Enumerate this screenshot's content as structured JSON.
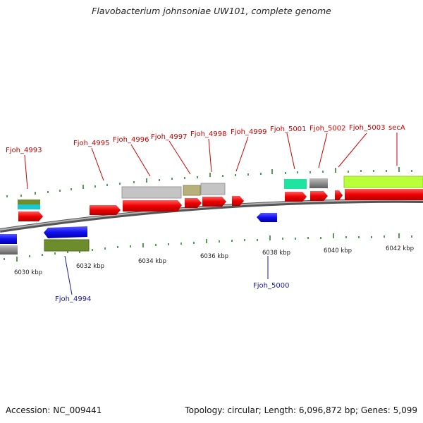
{
  "header": {
    "title": "Flavobacterium johnsoniae UW101, complete genome"
  },
  "footer": {
    "accession": "Accession: NC_009441",
    "topology": "Topology: circular; Length: 6,096,872 bp; Genes: 5,099"
  },
  "scale_labels": [
    "6030 kbp",
    "6032 kbp",
    "6034 kbp",
    "6036 kbp",
    "6038 kbp",
    "6040 kbp",
    "6042 kbp"
  ],
  "gene_labels": {
    "fjoh_4993": "Fjoh_4993",
    "fjoh_4994": "Fjoh_4994",
    "fjoh_4995": "Fjoh_4995",
    "fjoh_4996": "Fjoh_4996",
    "fjoh_4997": "Fjoh_4997",
    "fjoh_4998": "Fjoh_4998",
    "fjoh_4999": "Fjoh_4999",
    "fjoh_5000": "Fjoh_5000",
    "fjoh_5001": "Fjoh_5001",
    "fjoh_5002": "Fjoh_5002",
    "fjoh_5003": "Fjoh_5003",
    "secA": "secA"
  },
  "colors": {
    "forward_gene": "#ff0000",
    "reverse_gene": "#0000ee",
    "label_forward": "#cc0000",
    "label_reverse": "#1a1aa8",
    "backbone": "#8a8a8a",
    "tick": "#1a7a1a"
  }
}
